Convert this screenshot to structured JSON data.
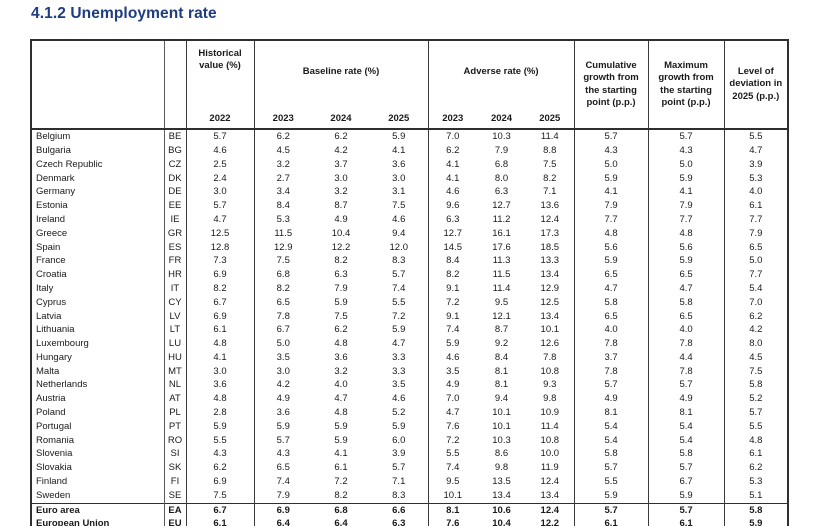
{
  "title": "4.1.2 Unemployment rate",
  "accent_color": "#1f3c7d",
  "table": {
    "group_headers": {
      "historical": "Historical value (%)",
      "baseline": "Baseline rate (%)",
      "adverse": "Adverse rate (%)",
      "cumulative": "Cumulative growth from the starting point (p.p.)",
      "maximum": "Maximum growth from the starting point (p.p.)",
      "deviation": "Level of deviation in 2025 (p.p.)"
    },
    "year_headers": [
      "2022",
      "2023",
      "2024",
      "2025",
      "2023",
      "2024",
      "2025"
    ],
    "rows": [
      {
        "name": "Belgium",
        "code": "BE",
        "values": [
          "5.7",
          "6.2",
          "6.2",
          "5.9",
          "7.0",
          "10.3",
          "11.4",
          "5.7",
          "5.7",
          "5.5"
        ]
      },
      {
        "name": "Bulgaria",
        "code": "BG",
        "values": [
          "4.6",
          "4.5",
          "4.2",
          "4.1",
          "6.2",
          "7.9",
          "8.8",
          "4.3",
          "4.3",
          "4.7"
        ]
      },
      {
        "name": "Czech Republic",
        "code": "CZ",
        "values": [
          "2.5",
          "3.2",
          "3.7",
          "3.6",
          "4.1",
          "6.8",
          "7.5",
          "5.0",
          "5.0",
          "3.9"
        ]
      },
      {
        "name": "Denmark",
        "code": "DK",
        "values": [
          "2.4",
          "2.7",
          "3.0",
          "3.0",
          "4.1",
          "8.0",
          "8.2",
          "5.9",
          "5.9",
          "5.3"
        ]
      },
      {
        "name": "Germany",
        "code": "DE",
        "values": [
          "3.0",
          "3.4",
          "3.2",
          "3.1",
          "4.6",
          "6.3",
          "7.1",
          "4.1",
          "4.1",
          "4.0"
        ]
      },
      {
        "name": "Estonia",
        "code": "EE",
        "values": [
          "5.7",
          "8.4",
          "8.7",
          "7.5",
          "9.6",
          "12.7",
          "13.6",
          "7.9",
          "7.9",
          "6.1"
        ]
      },
      {
        "name": "Ireland",
        "code": "IE",
        "values": [
          "4.7",
          "5.3",
          "4.9",
          "4.6",
          "6.3",
          "11.2",
          "12.4",
          "7.7",
          "7.7",
          "7.7"
        ]
      },
      {
        "name": "Greece",
        "code": "GR",
        "values": [
          "12.5",
          "11.5",
          "10.4",
          "9.4",
          "12.7",
          "16.1",
          "17.3",
          "4.8",
          "4.8",
          "7.9"
        ]
      },
      {
        "name": "Spain",
        "code": "ES",
        "values": [
          "12.8",
          "12.9",
          "12.2",
          "12.0",
          "14.5",
          "17.6",
          "18.5",
          "5.6",
          "5.6",
          "6.5"
        ]
      },
      {
        "name": "France",
        "code": "FR",
        "values": [
          "7.3",
          "7.5",
          "8.2",
          "8.3",
          "8.4",
          "11.3",
          "13.3",
          "5.9",
          "5.9",
          "5.0"
        ]
      },
      {
        "name": "Croatia",
        "code": "HR",
        "values": [
          "6.9",
          "6.8",
          "6.3",
          "5.7",
          "8.2",
          "11.5",
          "13.4",
          "6.5",
          "6.5",
          "7.7"
        ]
      },
      {
        "name": "Italy",
        "code": "IT",
        "values": [
          "8.2",
          "8.2",
          "7.9",
          "7.4",
          "9.1",
          "11.4",
          "12.9",
          "4.7",
          "4.7",
          "5.4"
        ]
      },
      {
        "name": "Cyprus",
        "code": "CY",
        "values": [
          "6.7",
          "6.5",
          "5.9",
          "5.5",
          "7.2",
          "9.5",
          "12.5",
          "5.8",
          "5.8",
          "7.0"
        ]
      },
      {
        "name": "Latvia",
        "code": "LV",
        "values": [
          "6.9",
          "7.8",
          "7.5",
          "7.2",
          "9.1",
          "12.1",
          "13.4",
          "6.5",
          "6.5",
          "6.2"
        ]
      },
      {
        "name": "Lithuania",
        "code": "LT",
        "values": [
          "6.1",
          "6.7",
          "6.2",
          "5.9",
          "7.4",
          "8.7",
          "10.1",
          "4.0",
          "4.0",
          "4.2"
        ]
      },
      {
        "name": "Luxembourg",
        "code": "LU",
        "values": [
          "4.8",
          "5.0",
          "4.8",
          "4.7",
          "5.9",
          "9.2",
          "12.6",
          "7.8",
          "7.8",
          "8.0"
        ]
      },
      {
        "name": "Hungary",
        "code": "HU",
        "values": [
          "4.1",
          "3.5",
          "3.6",
          "3.3",
          "4.6",
          "8.4",
          "7.8",
          "3.7",
          "4.4",
          "4.5"
        ]
      },
      {
        "name": "Malta",
        "code": "MT",
        "values": [
          "3.0",
          "3.0",
          "3.2",
          "3.3",
          "3.5",
          "8.1",
          "10.8",
          "7.8",
          "7.8",
          "7.5"
        ]
      },
      {
        "name": "Netherlands",
        "code": "NL",
        "values": [
          "3.6",
          "4.2",
          "4.0",
          "3.5",
          "4.9",
          "8.1",
          "9.3",
          "5.7",
          "5.7",
          "5.8"
        ]
      },
      {
        "name": "Austria",
        "code": "AT",
        "values": [
          "4.8",
          "4.9",
          "4.7",
          "4.6",
          "7.0",
          "9.4",
          "9.8",
          "4.9",
          "4.9",
          "5.2"
        ]
      },
      {
        "name": "Poland",
        "code": "PL",
        "values": [
          "2.8",
          "3.6",
          "4.8",
          "5.2",
          "4.7",
          "10.1",
          "10.9",
          "8.1",
          "8.1",
          "5.7"
        ]
      },
      {
        "name": "Portugal",
        "code": "PT",
        "values": [
          "5.9",
          "5.9",
          "5.9",
          "5.9",
          "7.6",
          "10.1",
          "11.4",
          "5.4",
          "5.4",
          "5.5"
        ]
      },
      {
        "name": "Romania",
        "code": "RO",
        "values": [
          "5.5",
          "5.7",
          "5.9",
          "6.0",
          "7.2",
          "10.3",
          "10.8",
          "5.4",
          "5.4",
          "4.8"
        ]
      },
      {
        "name": "Slovenia",
        "code": "SI",
        "values": [
          "4.3",
          "4.3",
          "4.1",
          "3.9",
          "5.5",
          "8.6",
          "10.0",
          "5.8",
          "5.8",
          "6.1"
        ]
      },
      {
        "name": "Slovakia",
        "code": "SK",
        "values": [
          "6.2",
          "6.5",
          "6.1",
          "5.7",
          "7.4",
          "9.8",
          "11.9",
          "5.7",
          "5.7",
          "6.2"
        ]
      },
      {
        "name": "Finland",
        "code": "FI",
        "values": [
          "6.9",
          "7.4",
          "7.2",
          "7.1",
          "9.5",
          "13.5",
          "12.4",
          "5.5",
          "6.7",
          "5.3"
        ]
      },
      {
        "name": "Sweden",
        "code": "SE",
        "values": [
          "7.5",
          "7.9",
          "8.2",
          "8.3",
          "10.1",
          "13.4",
          "13.4",
          "5.9",
          "5.9",
          "5.1"
        ]
      },
      {
        "name": "Euro area",
        "code": "EA",
        "values": [
          "6.7",
          "6.9",
          "6.8",
          "6.6",
          "8.1",
          "10.6",
          "12.4",
          "5.7",
          "5.7",
          "5.8"
        ],
        "bold": true
      },
      {
        "name": "European Union",
        "code": "EU",
        "values": [
          "6.1",
          "6.4",
          "6.4",
          "6.3",
          "7.6",
          "10.4",
          "12.2",
          "6.1",
          "6.1",
          "5.9"
        ],
        "bold": true
      }
    ]
  }
}
